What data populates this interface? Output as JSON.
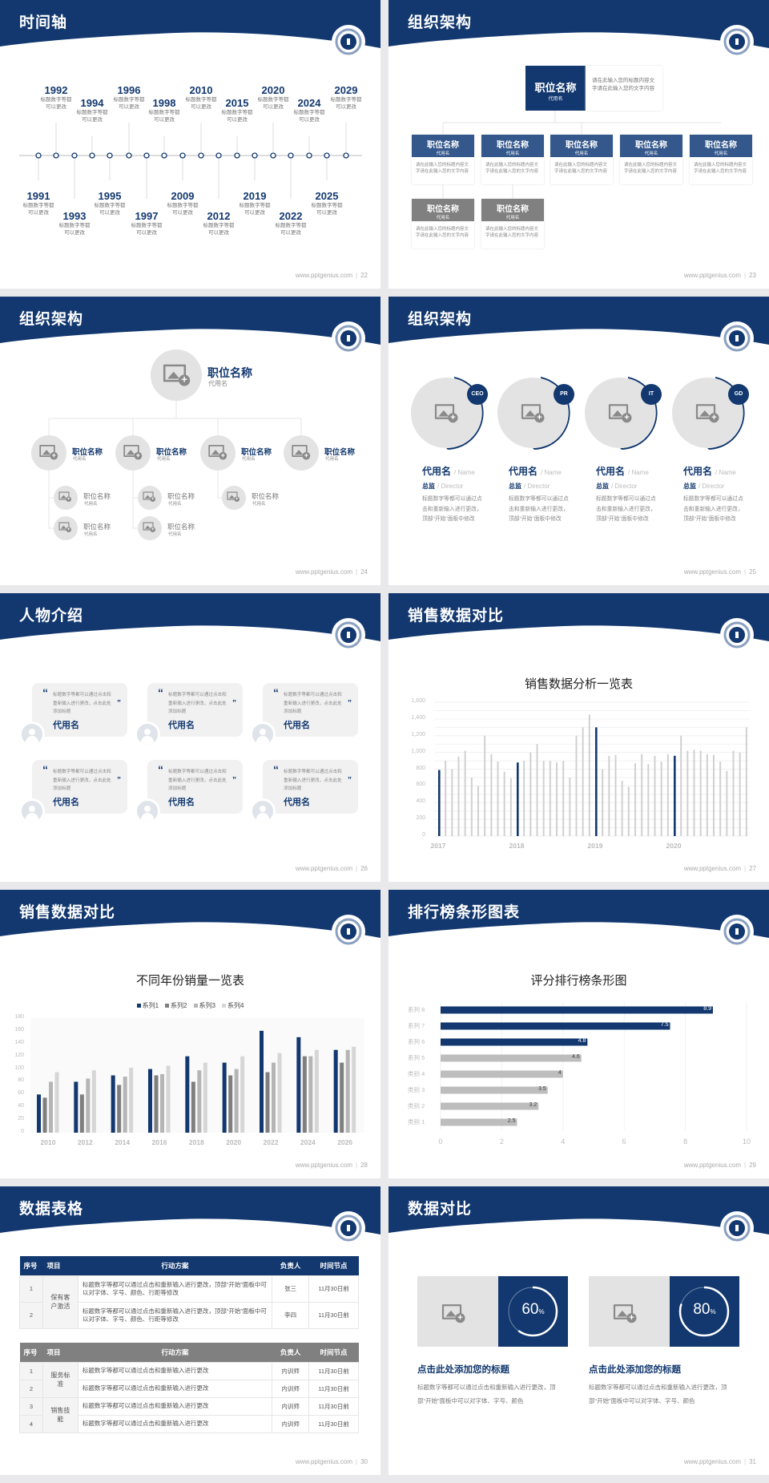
{
  "colors": {
    "navy": "#12386f",
    "mid_blue": "#34588c",
    "gray_header": "#808080",
    "light_bar": "#d0d0d0",
    "mid_gray": "#7f7f7f",
    "bg": "#e9e9eb"
  },
  "footer_url": "www.pptgenius.com",
  "timeline": {
    "title": "时间轴",
    "page": "22",
    "events": [
      {
        "year": "1991",
        "l1": "标题数字等都",
        "l2": "可以更改"
      },
      {
        "year": "1992",
        "l1": "标题数字等都",
        "l2": "可以更改"
      },
      {
        "year": "1993",
        "l1": "标题数字等都",
        "l2": "可以更改"
      },
      {
        "year": "1994",
        "l1": "标题数字等都",
        "l2": "可以更改"
      },
      {
        "year": "1995",
        "l1": "标题数字等都",
        "l2": "可以更改"
      },
      {
        "year": "1996",
        "l1": "标题数字等都",
        "l2": "可以更改"
      },
      {
        "year": "1997",
        "l1": "标题数字等都",
        "l2": "可以更改"
      },
      {
        "year": "1998",
        "l1": "标题数字等都",
        "l2": "可以更改"
      },
      {
        "year": "2009",
        "l1": "标题数字等都",
        "l2": "可以更改"
      },
      {
        "year": "2010",
        "l1": "标题数字等都",
        "l2": "可以更改"
      },
      {
        "year": "2012",
        "l1": "标题数字等都",
        "l2": "可以更改"
      },
      {
        "year": "2015",
        "l1": "标题数字等都",
        "l2": "可以更改"
      },
      {
        "year": "2019",
        "l1": "标题数字等都",
        "l2": "可以更改"
      },
      {
        "year": "2020",
        "l1": "标题数字等都",
        "l2": "可以更改"
      },
      {
        "year": "2022",
        "l1": "标题数字等都",
        "l2": "可以更改"
      },
      {
        "year": "2024",
        "l1": "标题数字等都",
        "l2": "可以更改"
      },
      {
        "year": "2025",
        "l1": "标题数字等都",
        "l2": "可以更改"
      },
      {
        "year": "2029",
        "l1": "标题数字等都",
        "l2": "可以更改"
      }
    ]
  },
  "org1": {
    "title": "组织架构",
    "page": "23",
    "top": {
      "name": "职位名称",
      "alias": "代用名",
      "desc": "请在此输入您的标题内容文字请在此输入您的文字内容"
    },
    "children": [
      {
        "name": "职位名称",
        "alias": "代用名",
        "desc": "请在此输入您的标题内容文字请在此输入您的文字内容"
      },
      {
        "name": "职位名称",
        "alias": "代用名",
        "desc": "请在此输入您的标题内容文字请在此输入您的文字内容"
      },
      {
        "name": "职位名称",
        "alias": "代用名",
        "desc": "请在此输入您的标题内容文字请在此输入您的文字内容"
      },
      {
        "name": "职位名称",
        "alias": "代用名",
        "desc": "请在此输入您的标题内容文字请在此输入您的文字内容"
      },
      {
        "name": "职位名称",
        "alias": "代用名",
        "desc": "请在此输入您的标题内容文字请在此输入您的文字内容"
      },
      {
        "name": "职位名称",
        "alias": "代用名",
        "desc": "请在此输入您的标题内容文字请在此输入您的文字内容"
      },
      {
        "name": "职位名称",
        "alias": "代用名",
        "desc": "请在此输入您的标题内容文字请在此输入您的文字内容"
      }
    ]
  },
  "org2": {
    "title": "组织架构",
    "page": "24",
    "top": {
      "name": "职位名称",
      "alias": "代用名"
    },
    "mid": [
      {
        "name": "职位名称",
        "alias": "代用名"
      },
      {
        "name": "职位名称",
        "alias": "代用名"
      },
      {
        "name": "职位名称",
        "alias": "代用名"
      },
      {
        "name": "职位名称",
        "alias": "代用名"
      }
    ],
    "sub": [
      {
        "name": "职位名称",
        "alias": "代用名"
      },
      {
        "name": "职位名称",
        "alias": "代用名"
      },
      {
        "name": "职位名称",
        "alias": "代用名"
      },
      {
        "name": "职位名称",
        "alias": "代用名"
      },
      {
        "name": "职位名称",
        "alias": "代用名"
      }
    ]
  },
  "team": {
    "title": "组织架构",
    "page": "25",
    "members": [
      {
        "badge": "CEO",
        "name": "代用名",
        "name_en": "/ Name",
        "role": "总监",
        "role_en": "/  Director",
        "desc": "标题数字等都可以通过点击和重新输入进行更改，顶部“开始”面板中修改"
      },
      {
        "badge": "PR",
        "name": "代用名",
        "name_en": "/ Name",
        "role": "总监",
        "role_en": "/  Director",
        "desc": "标题数字等都可以通过点击和重新输入进行更改，顶部“开始”面板中修改"
      },
      {
        "badge": "IT",
        "name": "代用名",
        "name_en": "/ Name",
        "role": "总监",
        "role_en": "/  Director",
        "desc": "标题数字等都可以通过点击和重新输入进行更改，顶部“开始”面板中修改"
      },
      {
        "badge": "GD",
        "name": "代用名",
        "name_en": "/ Name",
        "role": "总监",
        "role_en": "/  Director",
        "desc": "标题数字等都可以通过点击和重新输入进行更改，顶部“开始”面板中修改"
      }
    ]
  },
  "people": {
    "title": "人物介绍",
    "page": "26",
    "cards": [
      {
        "quote": "标题数字等都可以通过点击和重新输入进行更改，点击此处添加标题",
        "name": "代用名"
      },
      {
        "quote": "标题数字等都可以通过点击和重新输入进行更改，点击此处添加标题",
        "name": "代用名"
      },
      {
        "quote": "标题数字等都可以通过点击和重新输入进行更改，点击此处添加标题",
        "name": "代用名"
      },
      {
        "quote": "标题数字等都可以通过点击和重新输入进行更改，点击此处添加标题",
        "name": "代用名"
      },
      {
        "quote": "标题数字等都可以通过点击和重新输入进行更改，点击此处添加标题",
        "name": "代用名"
      },
      {
        "quote": "标题数字等都可以通过点击和重新输入进行更改，点击此处添加标题",
        "name": "代用名"
      }
    ]
  },
  "sales1": {
    "title": "销售数据对比",
    "page": "27"
  },
  "sales2": {
    "title": "销售数据对比",
    "page": "28"
  },
  "ranking": {
    "title": "排行榜条形图表",
    "page": "29"
  },
  "table": {
    "title": "数据表格",
    "page": "30",
    "headers": [
      "序号",
      "项目",
      "行动方案",
      "负责人",
      "时间节点"
    ],
    "table1": [
      {
        "no": "1",
        "item": "保有客户激活",
        "plan": "标题数字等都可以通过点击和重新输入进行更改，顶部“开始”面板中可以对字体、字号、颜色、行距等修改",
        "owner": "张三",
        "time": "11月30日前"
      },
      {
        "no": "2",
        "item": "保有客户激活",
        "plan": "标题数字等都可以通过点击和重新输入进行更改，顶部“开始”面板中可以对字体、字号、颜色、行距等修改",
        "owner": "李四",
        "time": "11月30日前"
      }
    ],
    "table2": [
      {
        "no": "1",
        "item": "服务标准",
        "plan": "标题数字等都可以通过点击和重新输入进行更改",
        "owner": "内训师",
        "time": "11月30日前"
      },
      {
        "no": "2",
        "item": "服务标准",
        "plan": "标题数字等都可以通过点击和重新输入进行更改",
        "owner": "内训师",
        "time": "11月30日前"
      },
      {
        "no": "3",
        "item": "销售技能",
        "plan": "标题数字等都可以通过点击和重新输入进行更改",
        "owner": "内训师",
        "time": "11月30日前"
      },
      {
        "no": "4",
        "item": "销售技能",
        "plan": "标题数字等都可以通过点击和重新输入进行更改",
        "owner": "内训师",
        "time": "11月30日前"
      }
    ]
  },
  "compare": {
    "title": "数据对比",
    "page": "31",
    "items": [
      {
        "percent": 60,
        "value": "60",
        "unit": "%",
        "heading": "点击此处添加您的标题",
        "desc": "标题数字等都可以通过点击和重新输入进行更改，顶部“开始”面板中可以对字体、字号、颜色"
      },
      {
        "percent": 80,
        "value": "80",
        "unit": "%",
        "heading": "点击此处添加您的标题",
        "desc": "标题数字等都可以通过点击和重新输入进行更改，顶部“开始”面板中可以对字体、字号、颜色"
      }
    ]
  },
  "chart_data": [
    {
      "type": "bar",
      "title": "销售数据分析一览表",
      "ylim": [
        0,
        1600
      ],
      "yticks": [
        "0",
        "200",
        "400",
        "600",
        "800",
        "1,000",
        "1,200",
        "1,400",
        "1,600"
      ],
      "xtick_labels": [
        "2017",
        "2018",
        "2019",
        "2020"
      ],
      "grid": true,
      "highlight_every": 12,
      "values": [
        790,
        900,
        800,
        950,
        1020,
        700,
        600,
        1200,
        980,
        890,
        770,
        690,
        880,
        900,
        1000,
        1100,
        900,
        900,
        880,
        900,
        700,
        1200,
        1300,
        1450,
        1300,
        800,
        960,
        970,
        660,
        590,
        870,
        980,
        860,
        960,
        890,
        980,
        960,
        1200,
        1020,
        1030,
        1020,
        980,
        970,
        890,
        780,
        1020,
        1000,
        1300
      ]
    },
    {
      "type": "bar",
      "title": "不同年份销量一览表",
      "ylim": [
        0,
        180
      ],
      "yticks": [
        "0",
        "20",
        "40",
        "60",
        "80",
        "100",
        "120",
        "140",
        "160",
        "180"
      ],
      "categories": [
        "2010",
        "2012",
        "2014",
        "2016",
        "2018",
        "2020",
        "2022",
        "2024",
        "2026"
      ],
      "legend": "top",
      "series": [
        {
          "name": "系列1",
          "color": "#12386f",
          "values": [
            60,
            80,
            90,
            100,
            120,
            110,
            160,
            150,
            130
          ]
        },
        {
          "name": "系列2",
          "color": "#7f7f7f",
          "values": [
            55,
            60,
            75,
            90,
            80,
            90,
            95,
            120,
            110
          ]
        },
        {
          "name": "系列3",
          "color": "#b5b5b5",
          "values": [
            80,
            85,
            88,
            92,
            98,
            100,
            110,
            120,
            130
          ]
        },
        {
          "name": "系列4",
          "color": "#d6d6d6",
          "values": [
            95,
            98,
            102,
            105,
            110,
            120,
            125,
            130,
            135
          ]
        }
      ]
    },
    {
      "type": "bar",
      "orientation": "horizontal",
      "title": "评分排行榜条形图",
      "xlim": [
        0,
        10
      ],
      "xticks": [
        "0",
        "2",
        "4",
        "6",
        "8",
        "10"
      ],
      "categories": [
        "系列 8",
        "系列 7",
        "系列 6",
        "系列 5",
        "类别 4",
        "类别 3",
        "类别 2",
        "类别 1"
      ],
      "values": [
        8.9,
        7.5,
        4.8,
        4.6,
        4,
        3.5,
        3.2,
        2.5
      ],
      "labels": [
        "8.9",
        "7.5",
        "4.8",
        "4.6",
        "4",
        "3.5",
        "3.2",
        "2.5"
      ],
      "colors": [
        "#12386f",
        "#12386f",
        "#12386f",
        "#bdbdbd",
        "#bdbdbd",
        "#bdbdbd",
        "#bdbdbd",
        "#bdbdbd"
      ]
    }
  ]
}
